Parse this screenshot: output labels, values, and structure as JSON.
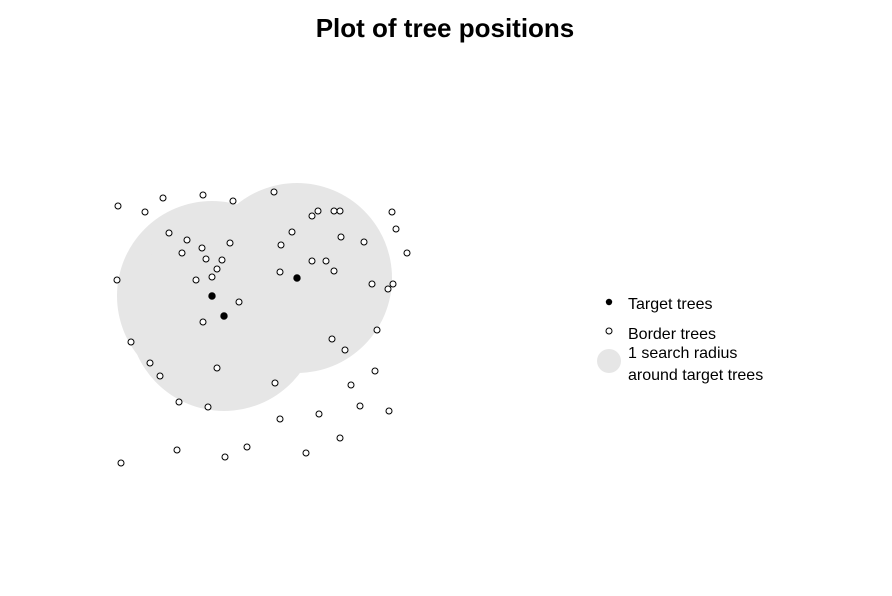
{
  "chart_data": {
    "type": "scatter",
    "title": "Plot of tree positions",
    "xlabel": "",
    "ylabel": "",
    "axes_visible": false,
    "grid": false,
    "legend_position": "right",
    "colors": {
      "target": "#000000",
      "border_stroke": "#000000",
      "border_fill": "#ffffff",
      "radius": "#e6e6e6"
    },
    "search_radius": 95,
    "series": [
      {
        "name": "Target trees",
        "marker": "filled-circle",
        "points": [
          [
            212,
            296
          ],
          [
            224,
            316
          ],
          [
            297,
            278
          ]
        ]
      },
      {
        "name": "Border trees",
        "marker": "open-circle",
        "points": [
          [
            118,
            206
          ],
          [
            145,
            212
          ],
          [
            163,
            198
          ],
          [
            203,
            195
          ],
          [
            233,
            201
          ],
          [
            274,
            192
          ],
          [
            169,
            233
          ],
          [
            187,
            240
          ],
          [
            202,
            248
          ],
          [
            182,
            253
          ],
          [
            222,
            260
          ],
          [
            206,
            259
          ],
          [
            217,
            269
          ],
          [
            212,
            277
          ],
          [
            196,
            280
          ],
          [
            230,
            243
          ],
          [
            117,
            280
          ],
          [
            131,
            342
          ],
          [
            150,
            363
          ],
          [
            160,
            376
          ],
          [
            179,
            402
          ],
          [
            208,
            407
          ],
          [
            217,
            368
          ],
          [
            203,
            322
          ],
          [
            239,
            302
          ],
          [
            292,
            232
          ],
          [
            281,
            245
          ],
          [
            280,
            272
          ],
          [
            312,
            216
          ],
          [
            318,
            211
          ],
          [
            334,
            211
          ],
          [
            340,
            211
          ],
          [
            341,
            237
          ],
          [
            364,
            242
          ],
          [
            392,
            212
          ],
          [
            396,
            229
          ],
          [
            407,
            253
          ],
          [
            312,
            261
          ],
          [
            326,
            261
          ],
          [
            334,
            271
          ],
          [
            372,
            284
          ],
          [
            388,
            289
          ],
          [
            393,
            284
          ],
          [
            377,
            330
          ],
          [
            332,
            339
          ],
          [
            345,
            350
          ],
          [
            375,
            371
          ],
          [
            351,
            385
          ],
          [
            360,
            406
          ],
          [
            389,
            411
          ],
          [
            319,
            414
          ],
          [
            340,
            438
          ],
          [
            280,
            419
          ],
          [
            275,
            383
          ],
          [
            247,
            447
          ],
          [
            225,
            457
          ],
          [
            177,
            450
          ],
          [
            306,
            453
          ],
          [
            121,
            463
          ]
        ]
      }
    ],
    "legend": [
      {
        "label": "Target trees",
        "marker": "filled-circle"
      },
      {
        "label": "Border trees",
        "marker": "open-circle"
      },
      {
        "label_lines": [
          "1 search radius",
          "around target trees"
        ],
        "marker": "shaded-disc"
      }
    ]
  }
}
